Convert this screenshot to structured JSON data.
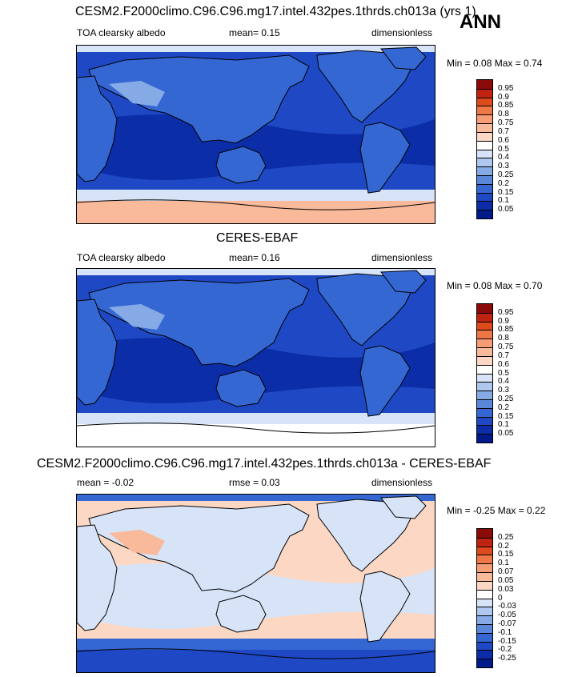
{
  "season": "ANN",
  "panels": [
    {
      "id": "model",
      "title": "CESM2.F2000climo.C96.C96.mg17.intel.432pes.1thrds.ch013a (yrs 1)",
      "left_label": "TOA clearsky albedo",
      "center_label": "mean=   0.15",
      "right_label": "dimensionless",
      "minmax_label": "Min =   0.08 Max =    0.74",
      "colorbar": {
        "levels": [
          "0.95",
          "0.9",
          "0.85",
          "0.8",
          "0.75",
          "0.7",
          "0.6",
          "0.5",
          "0.4",
          "0.3",
          "0.25",
          "0.2",
          "0.15",
          "0.1",
          "0.05"
        ],
        "colors": [
          "#8b0a0a",
          "#c0230f",
          "#dd4a1c",
          "#ef7646",
          "#f79d75",
          "#f9b99b",
          "#fcd8c4",
          "#ffffff",
          "#d7e3f7",
          "#aec8ef",
          "#86aae6",
          "#5b87db",
          "#3567d3",
          "#1e48c4",
          "#0b2ea8",
          "#001a8a"
        ]
      },
      "map_colors": {
        "ocean_deep": "#0b2ea8",
        "ocean_mid": "#1e48c4",
        "land": "#3567d3",
        "desert": "#86aae6",
        "polar": "#f9b99b",
        "ice_edge": "#d7e3f7"
      }
    },
    {
      "id": "obs",
      "title": "CERES-EBAF",
      "left_label": "TOA clearsky albedo",
      "center_label": "mean=   0.16",
      "right_label": "dimensionless",
      "minmax_label": "Min =   0.08 Max =    0.70",
      "colorbar": {
        "levels": [
          "0.95",
          "0.9",
          "0.85",
          "0.8",
          "0.75",
          "0.7",
          "0.6",
          "0.5",
          "0.4",
          "0.3",
          "0.25",
          "0.2",
          "0.15",
          "0.1",
          "0.05"
        ],
        "colors": [
          "#8b0a0a",
          "#c0230f",
          "#dd4a1c",
          "#ef7646",
          "#f79d75",
          "#f9b99b",
          "#fcd8c4",
          "#ffffff",
          "#d7e3f7",
          "#aec8ef",
          "#86aae6",
          "#5b87db",
          "#3567d3",
          "#1e48c4",
          "#0b2ea8",
          "#001a8a"
        ]
      },
      "map_colors": {
        "ocean_deep": "#0b2ea8",
        "ocean_mid": "#1e48c4",
        "land": "#3567d3",
        "desert": "#86aae6",
        "polar": "#ffffff",
        "ice_edge": "#d7e3f7"
      }
    },
    {
      "id": "diff",
      "title": "CESM2.F2000climo.C96.C96.mg17.intel.432pes.1thrds.ch013a - CERES-EBAF",
      "left_label": "mean =  -0.02",
      "center_label": "rmse =   0.03",
      "right_label": "dimensionless",
      "minmax_label": "Min =  -0.25 Max =    0.22",
      "colorbar": {
        "levels": [
          "0.25",
          "0.2",
          "0.15",
          "0.1",
          "0.07",
          "0.05",
          "0.03",
          "0",
          "-0.03",
          "-0.05",
          "-0.07",
          "-0.1",
          "-0.15",
          "-0.2",
          "-0.25"
        ],
        "colors": [
          "#8b0a0a",
          "#c0230f",
          "#dd4a1c",
          "#ef7646",
          "#f79d75",
          "#f9b99b",
          "#fcd8c4",
          "#ffffff",
          "#d7e3f7",
          "#aec8ef",
          "#86aae6",
          "#5b87db",
          "#3567d3",
          "#1e48c4",
          "#0b2ea8",
          "#001a8a"
        ]
      },
      "map_colors": {
        "ocean_deep": "#d7e3f7",
        "ocean_mid": "#fcd8c4",
        "land": "#d7e3f7",
        "desert": "#f9b99b",
        "polar": "#1e48c4",
        "ice_edge": "#3567d3"
      }
    }
  ]
}
